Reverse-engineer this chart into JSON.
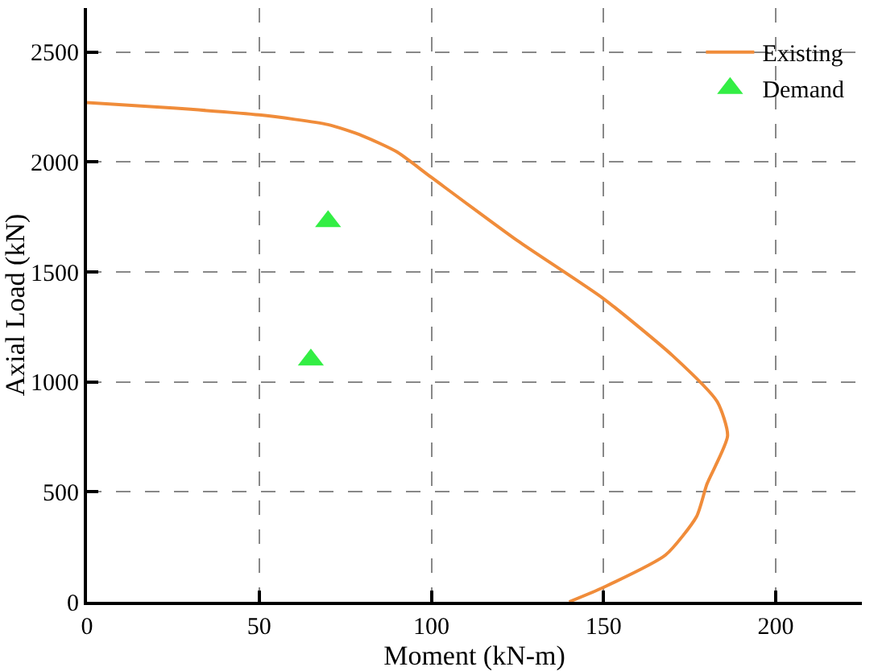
{
  "chart_data": {
    "type": "line",
    "xlabel": "Moment (kN-m)",
    "ylabel": "Axial Load (kN)",
    "xlim": [
      0,
      225
    ],
    "ylim": [
      0,
      2700
    ],
    "xticks": [
      0,
      50,
      100,
      150,
      200
    ],
    "yticks": [
      0,
      500,
      1000,
      1500,
      2000,
      2500
    ],
    "grid": true,
    "legend": "top right",
    "series": [
      {
        "name": "Existing",
        "color": "#f08c3a",
        "marker": "none",
        "line_style": "solid",
        "x": [
          0,
          25,
          50,
          70,
          80,
          90,
          100,
          125,
          150,
          170,
          183,
          186,
          180,
          177,
          168,
          150,
          140
        ],
        "values": [
          2270,
          2245,
          2214,
          2170,
          2119,
          2046,
          1930,
          1642,
          1378,
          1120,
          910,
          755,
          535,
          388,
          213,
          66,
          0
        ]
      },
      {
        "name": "Demand",
        "color": "#33ee44",
        "type": "scatter",
        "marker": "triangle",
        "x": [
          70,
          65
        ],
        "values": [
          1730,
          1100
        ]
      }
    ]
  }
}
